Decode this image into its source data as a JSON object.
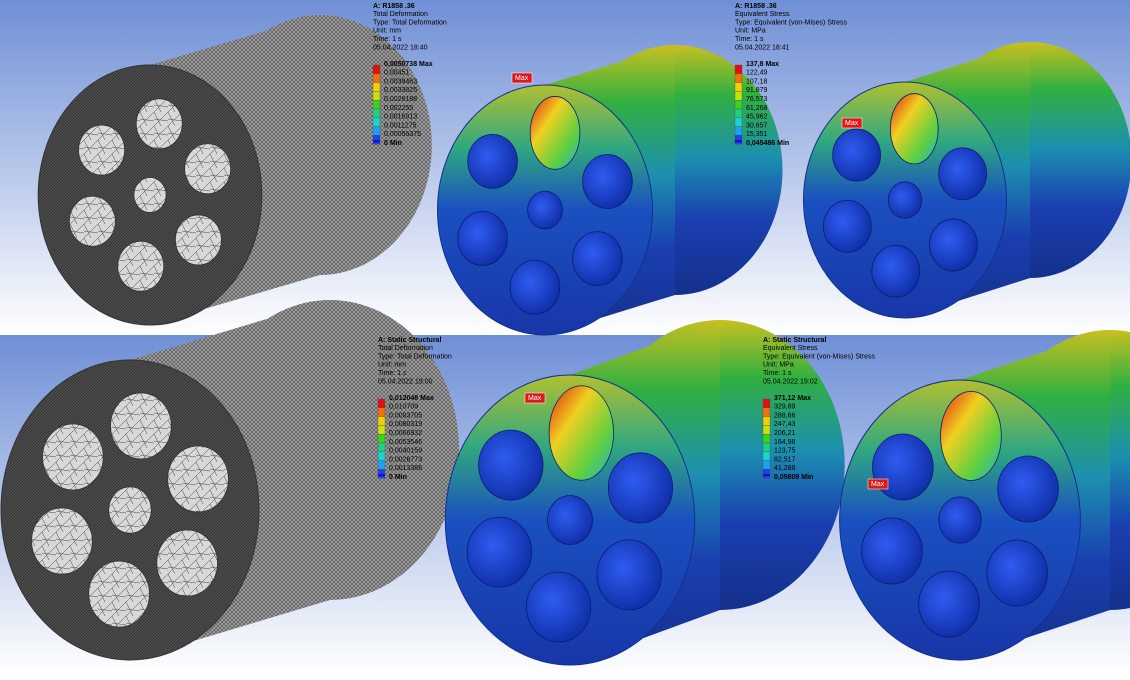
{
  "panels": [
    {
      "header": {
        "analysis": "A: R1858 .36",
        "result": "Total Deformation",
        "type": "Type: Total Deformation",
        "unit": "Unit: mm",
        "time": "Time: 1 s",
        "date": "05.04.2022 18:40"
      },
      "legend": [
        "0,0050738 Max",
        "0,00451",
        "0,0039463",
        "0,0033825",
        "0,0028188",
        "0,002255",
        "0,0016913",
        "0,0011275",
        "0,00056375",
        "0 Min"
      ],
      "marker": "Max"
    },
    {
      "header": {
        "analysis": "A: R1858 .36",
        "result": "Equivalent Stress",
        "type": "Type: Equivalent (von-Mises) Stress",
        "unit": "Unit: MPa",
        "time": "Time: 1 s",
        "date": "05.04.2022 18:41"
      },
      "legend": [
        "137,8 Max",
        "122,49",
        "107,18",
        "91,879",
        "76,573",
        "61,268",
        "45,962",
        "30,657",
        "15,351",
        "0,045486 Min"
      ],
      "marker": "Max"
    },
    {
      "header": {
        "analysis": "A: Static Structural",
        "result": "Total Deformation",
        "type": "Type: Total Deformation",
        "unit": "Unit: mm",
        "time": "Time: 1 s",
        "date": "05.04.2022 19:00"
      },
      "legend": [
        "0,012048 Max",
        "0,010709",
        "0,0093705",
        "0,0080319",
        "0,0066932",
        "0,0053546",
        "0,0040159",
        "0,0026773",
        "0,0013386",
        "0 Min"
      ],
      "marker": "Max"
    },
    {
      "header": {
        "analysis": "A: Static Structural",
        "result": "Equivalent Stress",
        "type": "Type: Equivalent (von-Mises) Stress",
        "unit": "Unit: MPa",
        "time": "Time: 1 s",
        "date": "05.04.2022 19:02"
      },
      "legend": [
        "371,12 Max",
        "329,89",
        "288,66",
        "247,43",
        "206,21",
        "164,98",
        "123,75",
        "82,517",
        "41,288",
        "0,05808 Min"
      ],
      "marker": "Max"
    }
  ]
}
